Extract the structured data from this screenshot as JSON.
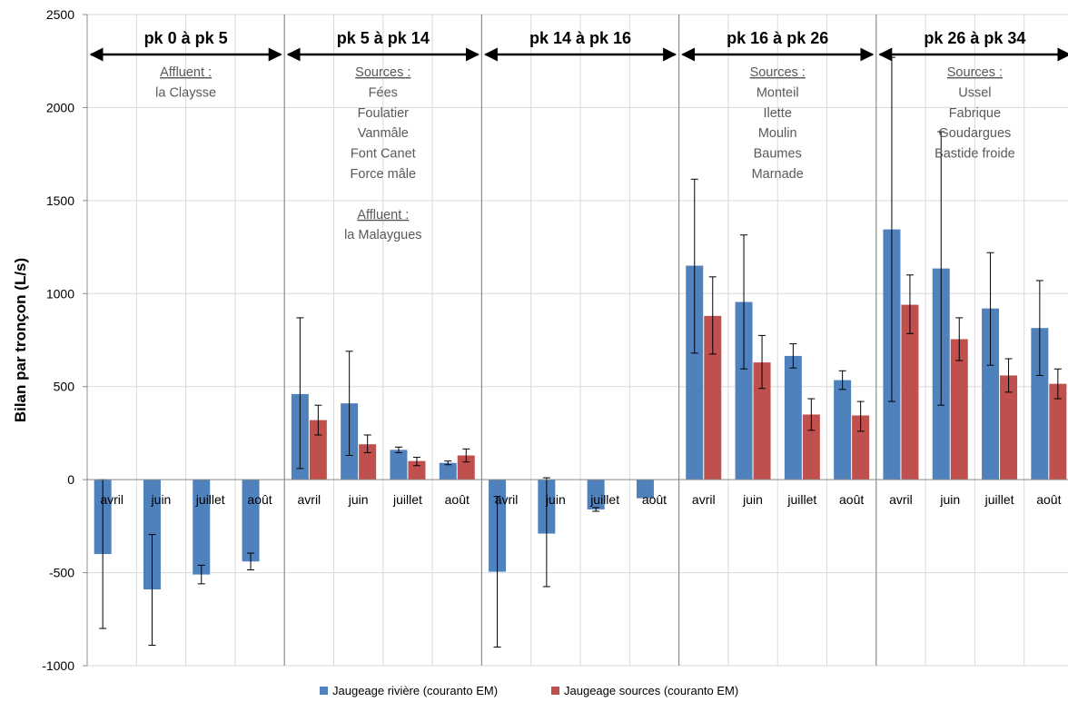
{
  "chart_data": {
    "type": "bar",
    "ylabel": "Bilan par tronçon (L/s)",
    "ylim": [
      -1000,
      2500
    ],
    "yticks": [
      -1000,
      -500,
      0,
      500,
      1000,
      1500,
      2000,
      2500
    ],
    "ytick_labels": [
      "-1000",
      "-500",
      "0",
      "500",
      "1000",
      "1500",
      "2000",
      "2500"
    ],
    "grid": true,
    "legend_position": "bottom",
    "categories": [
      "avril",
      "juin",
      "juillet",
      "août",
      "avril",
      "juin",
      "juillet",
      "août",
      "avril",
      "juin",
      "juillet",
      "août",
      "avril",
      "juin",
      "juillet",
      "août",
      "avril",
      "juin",
      "juillet",
      "août"
    ],
    "series": [
      {
        "name": "Jaugeage rivière (couranto EM)",
        "color": "#4f81bd",
        "values": [
          -400,
          -590,
          -510,
          -440,
          460,
          410,
          160,
          90,
          -495,
          -290,
          -160,
          -100,
          1150,
          955,
          665,
          535,
          1345,
          1135,
          920,
          815
        ],
        "error_low": [
          -800,
          -890,
          -560,
          -485,
          60,
          130,
          145,
          80,
          -900,
          -575,
          -170,
          -100,
          680,
          595,
          600,
          485,
          420,
          400,
          615,
          560
        ],
        "error_high": [
          0,
          -295,
          -460,
          -395,
          870,
          690,
          175,
          100,
          -90,
          10,
          -150,
          -100,
          1615,
          1315,
          730,
          585,
          2270,
          1870,
          1220,
          1070
        ]
      },
      {
        "name": "Jaugeage sources (couranto EM)",
        "color": "#c0504d",
        "values": [
          null,
          null,
          null,
          null,
          320,
          190,
          100,
          130,
          null,
          null,
          null,
          null,
          880,
          630,
          350,
          345,
          940,
          755,
          560,
          515
        ],
        "error_low": [
          null,
          null,
          null,
          null,
          240,
          145,
          75,
          95,
          null,
          null,
          null,
          null,
          675,
          490,
          265,
          260,
          785,
          640,
          470,
          435
        ],
        "error_high": [
          null,
          null,
          null,
          null,
          400,
          240,
          120,
          165,
          null,
          null,
          null,
          null,
          1090,
          775,
          435,
          420,
          1100,
          870,
          650,
          595
        ]
      }
    ],
    "groups": [
      {
        "title": "pk 0 à pk 5",
        "notes": [
          {
            "text": "Affluent :",
            "underline": true
          },
          {
            "text": "la Claysse",
            "underline": false
          }
        ]
      },
      {
        "title": "pk 5 à pk 14",
        "notes": [
          {
            "text": "Sources :",
            "underline": true
          },
          {
            "text": "Fées",
            "underline": false
          },
          {
            "text": "Foulatier",
            "underline": false
          },
          {
            "text": "Vanmâle",
            "underline": false
          },
          {
            "text": "Font Canet",
            "underline": false
          },
          {
            "text": "Force mâle",
            "underline": false
          },
          {
            "text": "",
            "underline": false
          },
          {
            "text": "Affluent :",
            "underline": true
          },
          {
            "text": "la Malaygues",
            "underline": false
          }
        ]
      },
      {
        "title": "pk 14 à pk 16",
        "notes": []
      },
      {
        "title": "pk 16 à pk 26",
        "notes": [
          {
            "text": "Sources :",
            "underline": true
          },
          {
            "text": "Monteil",
            "underline": false
          },
          {
            "text": "Ilette",
            "underline": false
          },
          {
            "text": "Moulin",
            "underline": false
          },
          {
            "text": "Baumes",
            "underline": false
          },
          {
            "text": "Marnade",
            "underline": false
          }
        ]
      },
      {
        "title": "pk 26 à pk 34",
        "notes": [
          {
            "text": "Sources :",
            "underline": true
          },
          {
            "text": "Ussel",
            "underline": false
          },
          {
            "text": "Fabrique",
            "underline": false
          },
          {
            "text": "Goudargues",
            "underline": false
          },
          {
            "text": "Bastide froide",
            "underline": false
          }
        ]
      }
    ]
  }
}
